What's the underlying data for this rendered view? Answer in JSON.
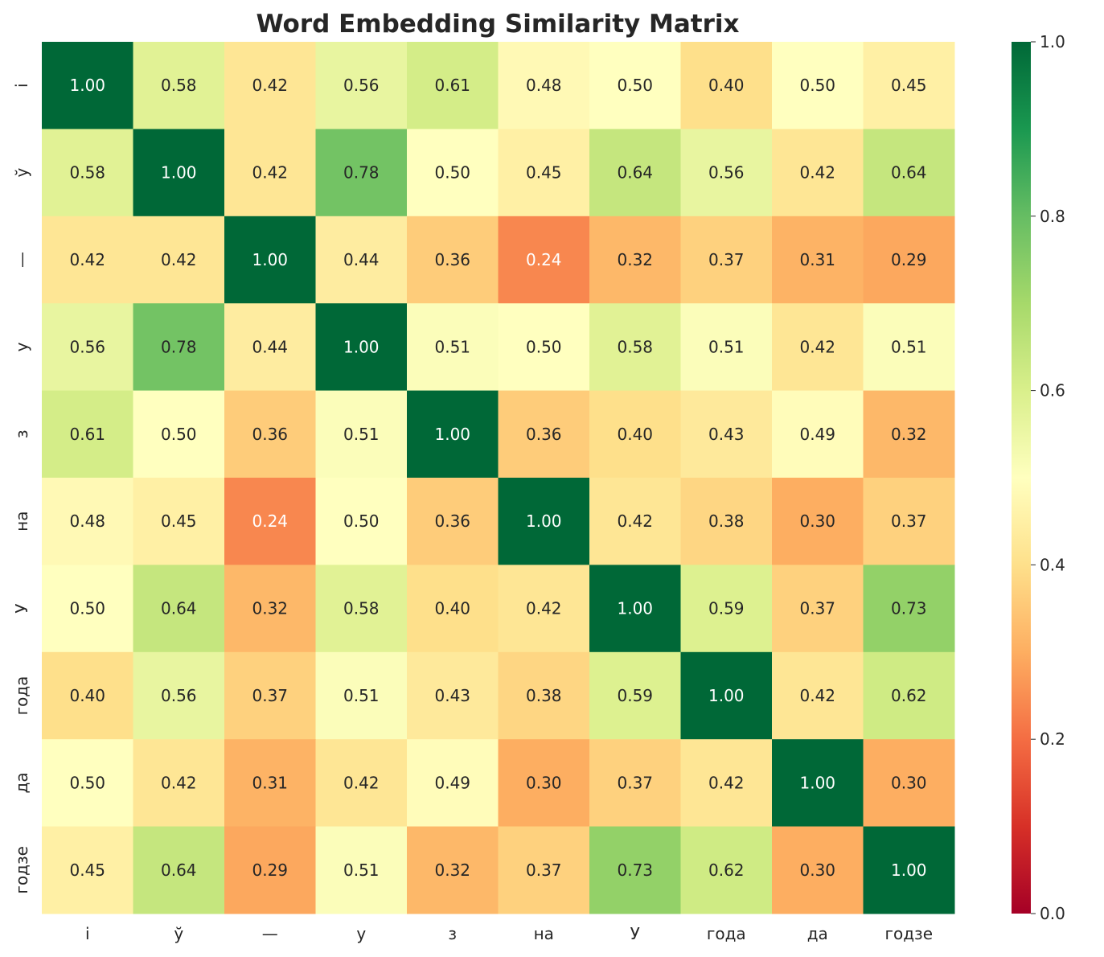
{
  "chart_data": {
    "type": "heatmap",
    "title": "Word Embedding Similarity Matrix",
    "xlabel": "",
    "ylabel": "",
    "labels": [
      "і",
      "ў",
      "—",
      "у",
      "з",
      "на",
      "У",
      "года",
      "да",
      "годзе"
    ],
    "values": [
      [
        1.0,
        0.58,
        0.42,
        0.56,
        0.61,
        0.48,
        0.5,
        0.4,
        0.5,
        0.45
      ],
      [
        0.58,
        1.0,
        0.42,
        0.78,
        0.5,
        0.45,
        0.64,
        0.56,
        0.42,
        0.64
      ],
      [
        0.42,
        0.42,
        1.0,
        0.44,
        0.36,
        0.24,
        0.32,
        0.37,
        0.31,
        0.29
      ],
      [
        0.56,
        0.78,
        0.44,
        1.0,
        0.51,
        0.5,
        0.58,
        0.51,
        0.42,
        0.51
      ],
      [
        0.61,
        0.5,
        0.36,
        0.51,
        1.0,
        0.36,
        0.4,
        0.43,
        0.49,
        0.32
      ],
      [
        0.48,
        0.45,
        0.24,
        0.5,
        0.36,
        1.0,
        0.42,
        0.38,
        0.3,
        0.37
      ],
      [
        0.5,
        0.64,
        0.32,
        0.58,
        0.4,
        0.42,
        1.0,
        0.59,
        0.37,
        0.73
      ],
      [
        0.4,
        0.56,
        0.37,
        0.51,
        0.43,
        0.38,
        0.59,
        1.0,
        0.42,
        0.62
      ],
      [
        0.5,
        0.42,
        0.31,
        0.42,
        0.49,
        0.3,
        0.37,
        0.42,
        1.0,
        0.3
      ],
      [
        0.45,
        0.64,
        0.29,
        0.51,
        0.32,
        0.37,
        0.73,
        0.62,
        0.3,
        1.0
      ]
    ],
    "colormap": "RdYlGn",
    "vmin": 0.0,
    "vmax": 1.0,
    "colorbar_ticks": [
      "0.0",
      "0.2",
      "0.4",
      "0.6",
      "0.8",
      "1.0"
    ],
    "annotation_format": "0.00",
    "grid": false
  }
}
